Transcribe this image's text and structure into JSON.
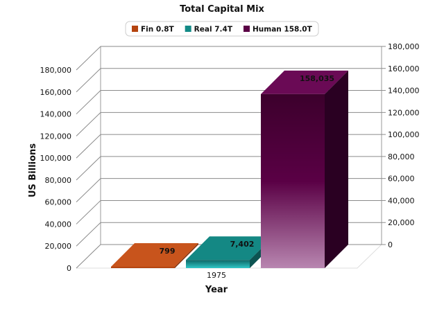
{
  "chart_data": {
    "type": "bar",
    "title": "Total Capital Mix",
    "xlabel": "Year",
    "ylabel": "US Billions",
    "categories": [
      "1975"
    ],
    "series": [
      {
        "name": "Fin 0.8T",
        "values": [
          799
        ],
        "label": "799",
        "color": "#b5440f"
      },
      {
        "name": "Real 7.4T",
        "values": [
          7402
        ],
        "label": "7,402",
        "color": "#138a86"
      },
      {
        "name": "Human 158.0T",
        "values": [
          158035
        ],
        "label": "158,035",
        "color": "#5a0045"
      }
    ],
    "left_axis": {
      "ylim": [
        0,
        180000
      ],
      "ticks": [
        "0",
        "20,000",
        "40,000",
        "60,000",
        "80,000",
        "100,000",
        "120,000",
        "140,000",
        "160,000",
        "180,000"
      ]
    },
    "right_axis": {
      "ylim": [
        0,
        180000
      ],
      "ticks": [
        "0",
        "20,000",
        "40,000",
        "60,000",
        "80,000",
        "100,000",
        "120,000",
        "140,000",
        "160,000",
        "180,000"
      ]
    },
    "legend_position": "top-center",
    "grid": true,
    "style": "3d"
  }
}
